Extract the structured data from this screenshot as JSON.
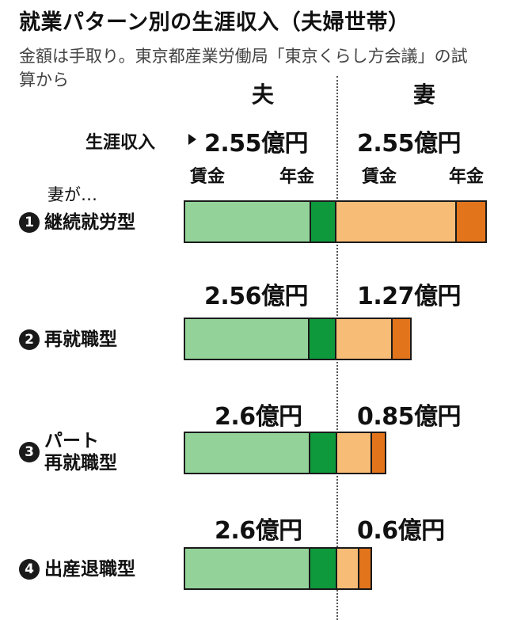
{
  "header": {
    "title": "就業パターン別の生涯収入（夫婦世帯）",
    "subtitle": "金額は手取り。東京都産業労働局「東京くらし方会議」の試算から"
  },
  "columns": {
    "husband": "夫",
    "wife": "妻"
  },
  "legend": {
    "lifetime_income": "生涯収入",
    "wage": "賃金",
    "pension": "年金",
    "wife_prefix": "妻が…"
  },
  "chart_data": {
    "type": "bar",
    "title": "就業パターン別の生涯収入（夫婦世帯）",
    "unit": "億円",
    "categories": [
      "継続就労型",
      "再就職型",
      "パート再就職型",
      "出産退職型"
    ],
    "category_badges": [
      "1",
      "2",
      "3",
      "4"
    ],
    "series": [
      {
        "name": "夫",
        "values": [
          2.55,
          2.56,
          2.6,
          2.6
        ],
        "labels": [
          "2.55億円",
          "2.56億円",
          "2.6億円",
          "2.6億円"
        ]
      },
      {
        "name": "妻",
        "values": [
          2.55,
          1.27,
          0.85,
          0.6
        ],
        "labels": [
          "2.55億円",
          "1.27億円",
          "0.85億円",
          "0.6億円"
        ]
      }
    ],
    "stack_labels": [
      "賃金",
      "年金"
    ],
    "pension_share": {
      "夫": [
        0.17,
        0.18,
        0.18,
        0.18
      ],
      "妻": [
        0.2,
        0.25,
        0.3,
        0.35
      ]
    },
    "colors": {
      "husband_wage": "#93d39a",
      "husband_pension": "#0e9a3c",
      "wife_wage": "#f7bc76",
      "wife_pension": "#e2741c"
    }
  }
}
